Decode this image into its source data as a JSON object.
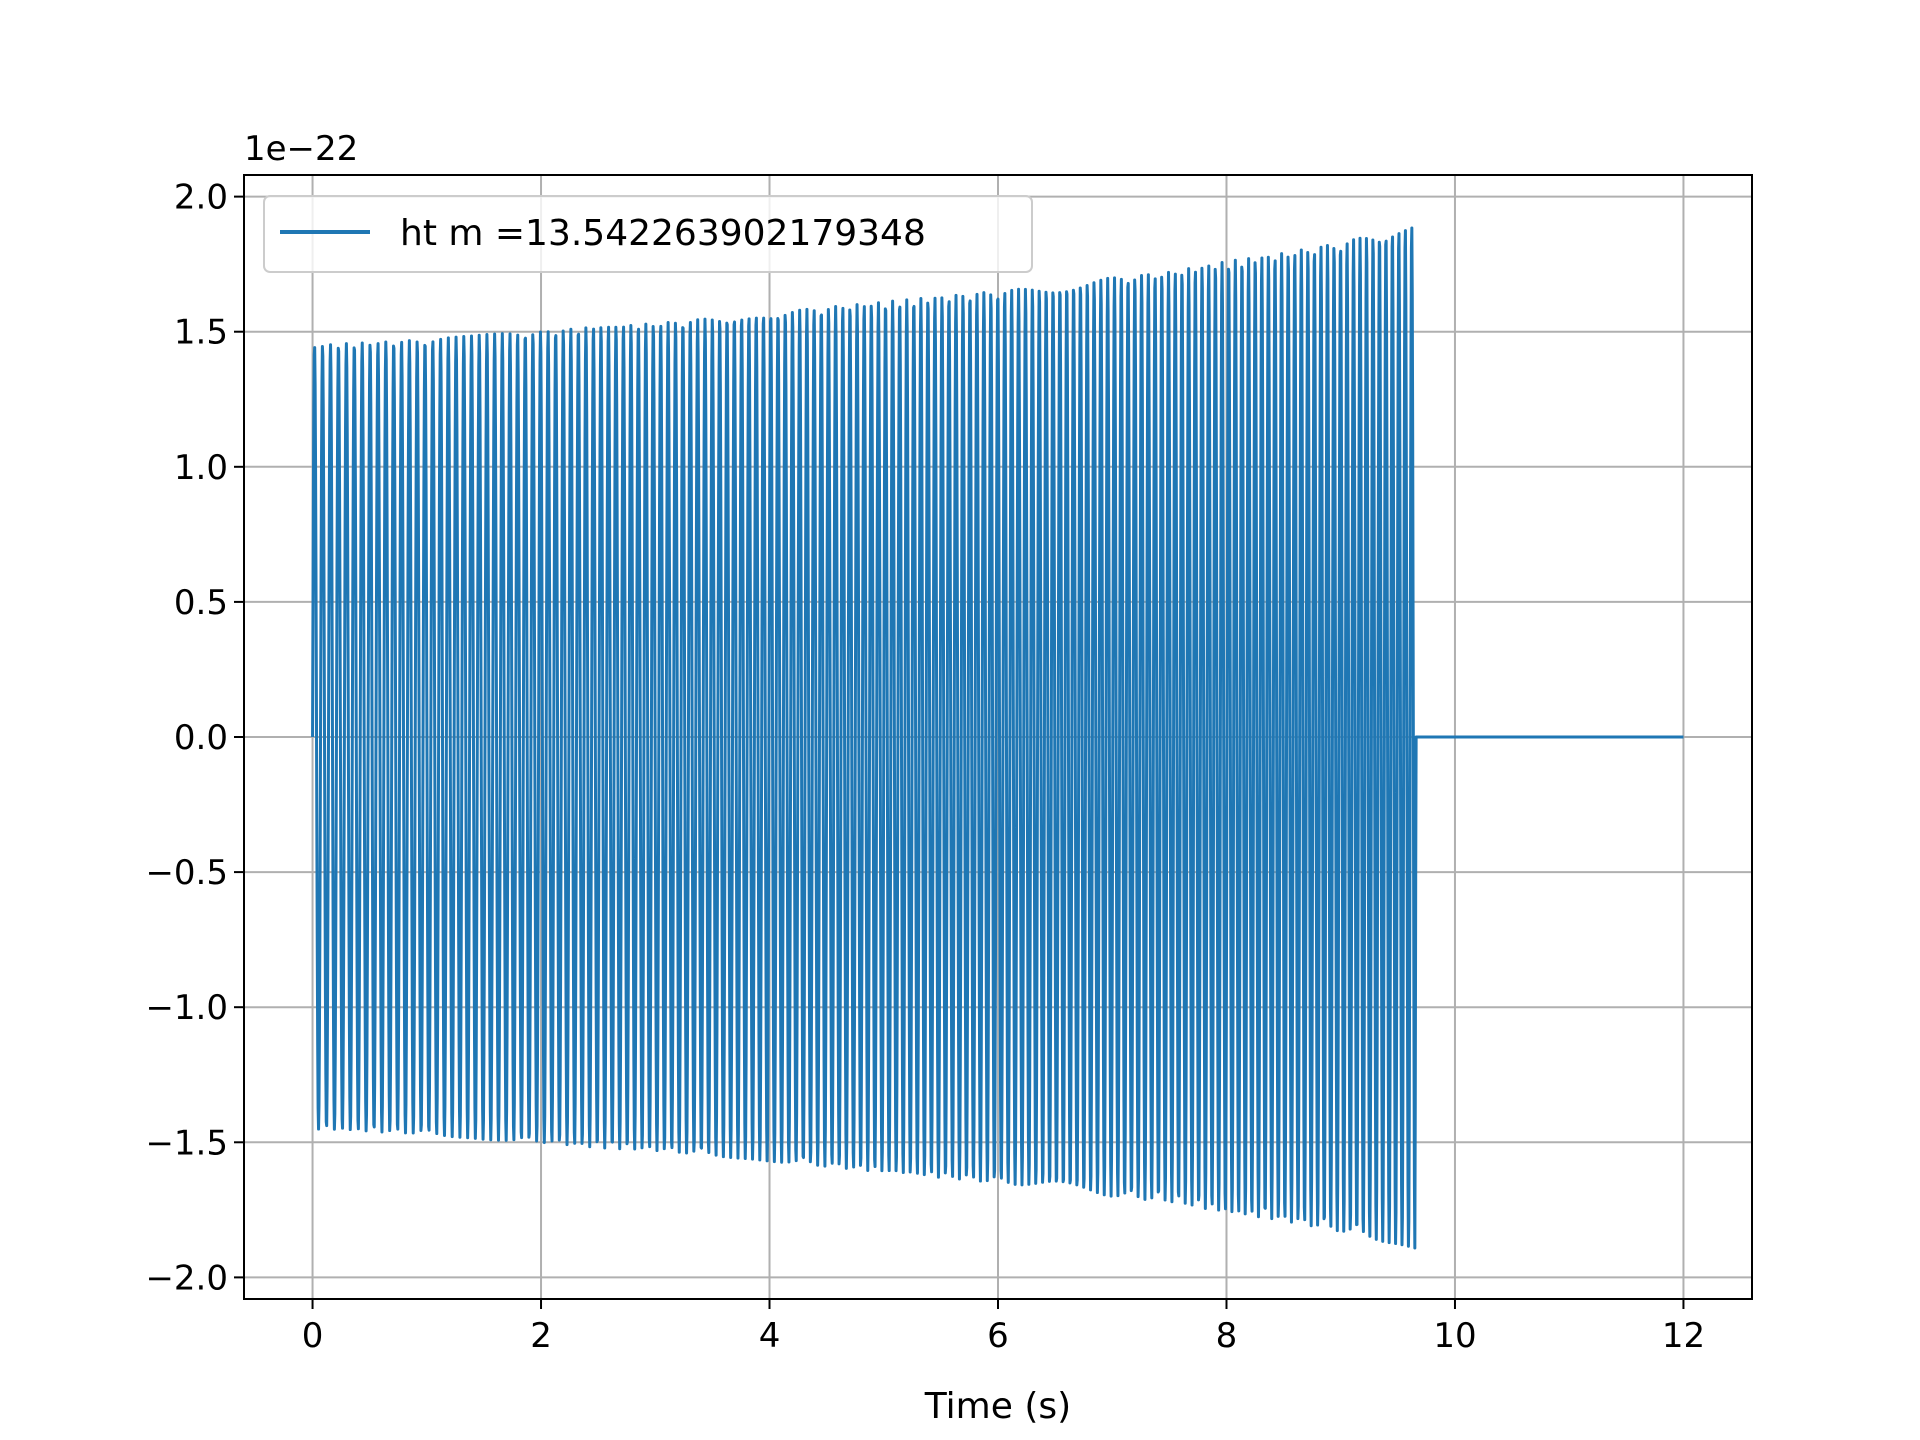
{
  "chart_data": {
    "type": "line",
    "title": "",
    "xlabel": "Time (s)",
    "ylabel": "",
    "y_offset_text": "1e−22",
    "xlim": [
      -0.6,
      12.6
    ],
    "ylim": [
      -2.08,
      2.08
    ],
    "x_ticks": [
      0,
      2,
      4,
      6,
      8,
      10,
      12
    ],
    "x_tick_labels": [
      "0",
      "2",
      "4",
      "6",
      "8",
      "10",
      "12"
    ],
    "y_ticks": [
      2.0,
      1.5,
      1.0,
      0.5,
      0.0,
      -0.5,
      -1.0,
      -1.5,
      -2.0
    ],
    "y_tick_labels": [
      "2.0",
      "1.5",
      "1.0",
      "0.5",
      "0.0",
      "−0.5",
      "−1.0",
      "−1.5",
      "−2.0"
    ],
    "grid": true,
    "legend_position": "top-left",
    "color": "#1f77b4",
    "series": [
      {
        "name": "ht m =13.542263902179348",
        "color": "#1f77b4",
        "description": "",
        "x": [
          0,
          0.5,
          1,
          1.5,
          2,
          2.5,
          3,
          3.5,
          4,
          4.5,
          5,
          5.5,
          6,
          6.5,
          7,
          7.5,
          8,
          8.5,
          9,
          9.5,
          9.65,
          9.66,
          10,
          11,
          12
        ],
        "envelope": [
          1.45,
          1.46,
          1.47,
          1.49,
          1.5,
          1.52,
          1.53,
          1.55,
          1.57,
          1.59,
          1.61,
          1.63,
          1.65,
          1.67,
          1.7,
          1.72,
          1.76,
          1.79,
          1.83,
          1.88,
          1.9,
          0,
          0,
          0,
          0
        ]
      }
    ]
  }
}
